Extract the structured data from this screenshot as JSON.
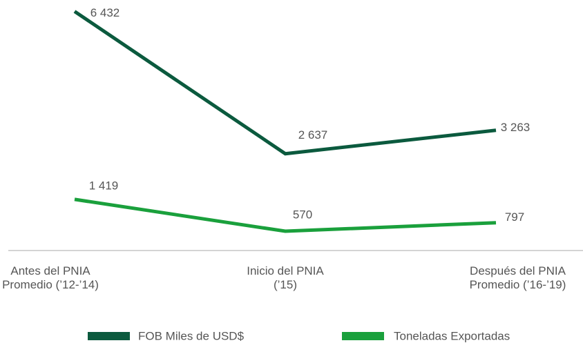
{
  "chart_data": {
    "type": "line",
    "categories": [
      "Antes del PNIA\nPromedio (’12-’14)",
      "Inicio del PNIA\n(’15)",
      "Después del PNIA\nPromedio (’16-’19)"
    ],
    "series": [
      {
        "name": "FOB Miles de USD$",
        "color": "#0b5a3e",
        "values": [
          6432,
          2637,
          3263
        ],
        "value_labels": [
          "6 432",
          "2 637",
          "3 263"
        ]
      },
      {
        "name": "Toneladas Exportadas",
        "color": "#1aa03c",
        "values": [
          1419,
          570,
          797
        ],
        "value_labels": [
          "1 419",
          "570",
          "797"
        ]
      }
    ],
    "ylim": [
      0,
      6700
    ]
  }
}
